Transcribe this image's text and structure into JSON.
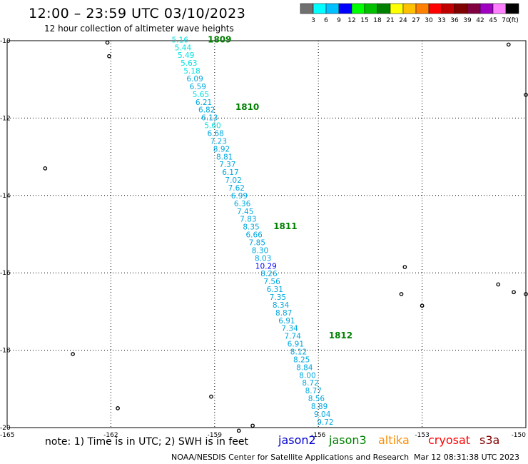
{
  "title": "12:00 – 23:59 UTC 03/10/2023",
  "subtitle": "12 hour collection of altimeter wave heights",
  "colorbar": {
    "colors": [
      "#707070",
      "#00ffff",
      "#00c0ff",
      "#0000ff",
      "#00ff00",
      "#00c000",
      "#008000",
      "#ffff00",
      "#ffc000",
      "#ff8000",
      "#ff0000",
      "#c00000",
      "#800000",
      "#800040",
      "#a000c0",
      "#ff80ff",
      "#000000"
    ],
    "labels": [
      "3",
      "6",
      "9",
      "12",
      "15",
      "18",
      "21",
      "24",
      "27",
      "30",
      "33",
      "36",
      "39",
      "42",
      "45",
      "70",
      "(ft)"
    ]
  },
  "axes": {
    "x_ticks": [
      "-165",
      "-162",
      "-159",
      "-156",
      "-153",
      "-150"
    ],
    "x_values": [
      -165,
      -162,
      -159,
      -156,
      -153,
      -150
    ],
    "y_ticks": [
      "-10",
      "-12",
      "-14",
      "-16",
      "-18",
      "-20"
    ],
    "y_values": [
      -10,
      -12,
      -14,
      -16,
      -18,
      -20
    ]
  },
  "swh_values": [
    "5.16",
    "5.44",
    "5.49",
    "5.63",
    "5.18",
    "6.09",
    "6.59",
    "5.65",
    "6.21",
    "6.82",
    "6.13",
    "5.60",
    "6.68",
    "7.23",
    "8.92",
    "8.81",
    "7.37",
    "6.17",
    "7.02",
    "7.62",
    "6.99",
    "6.36",
    "7.45",
    "7.83",
    "8.35",
    "6.66",
    "7.85",
    "8.30",
    "8.03",
    "10.29",
    "8.26",
    "7.56",
    "6.31",
    "7.35",
    "8.34",
    "8.87",
    "6.91",
    "7.34",
    "7.74",
    "6.91",
    "8.12",
    "8.25",
    "8.84",
    "8.00",
    "8.72",
    "8.77",
    "8.56",
    "8.89",
    "9.04",
    "9.72"
  ],
  "time_labels": [
    {
      "text": "1809",
      "lon": -159.2,
      "lat": -9.97
    },
    {
      "text": "1810",
      "lon": -158.4,
      "lat": -11.72
    },
    {
      "text": "1811",
      "lon": -157.3,
      "lat": -14.8
    },
    {
      "text": "1812",
      "lon": -155.7,
      "lat": -17.62
    }
  ],
  "track": {
    "start": {
      "lon": -160.0,
      "lat": -9.97
    },
    "end": {
      "lon": -155.8,
      "lat": -19.85
    }
  },
  "islands": [
    {
      "lon": -162.1,
      "lat": -10.05
    },
    {
      "lon": -162.05,
      "lat": -10.4
    },
    {
      "lon": -163.9,
      "lat": -13.3
    },
    {
      "lon": -161.8,
      "lat": -19.5
    },
    {
      "lon": -159.1,
      "lat": -19.2
    },
    {
      "lon": -158.3,
      "lat": -20.08
    },
    {
      "lon": -157.9,
      "lat": -19.95
    },
    {
      "lon": -163.1,
      "lat": -18.1
    },
    {
      "lon": -153.5,
      "lat": -15.85
    },
    {
      "lon": -153.6,
      "lat": -16.55
    },
    {
      "lon": -153.0,
      "lat": -16.85
    },
    {
      "lon": -150.8,
      "lat": -16.3
    },
    {
      "lon": -150.35,
      "lat": -16.5
    },
    {
      "lon": -150.0,
      "lat": -16.55
    },
    {
      "lon": -149.8,
      "lat": -16.9
    },
    {
      "lon": -149.05,
      "lat": -16.8
    },
    {
      "lon": -148.6,
      "lat": -17.75
    },
    {
      "lon": -150.5,
      "lat": -10.1
    },
    {
      "lon": -150.0,
      "lat": -11.4
    },
    {
      "lon": -148.2,
      "lat": -10.0
    }
  ],
  "note_prefix": "note:  1) Time is in UTC;  2) SWH is in feet",
  "missions": [
    {
      "name": "jason2",
      "color": "#0000cc"
    },
    {
      "name": "jason3",
      "color": "#008000"
    },
    {
      "name": "altika",
      "color": "#ff8c00"
    },
    {
      "name": "cryosat",
      "color": "#ff0000"
    },
    {
      "name": "s3a",
      "color": "#800000"
    }
  ],
  "footer": "NOAA/NESDIS Center for Satellite Applications and Research",
  "footer_timestamp": "Mar 12 08:31:38 UTC 2023"
}
